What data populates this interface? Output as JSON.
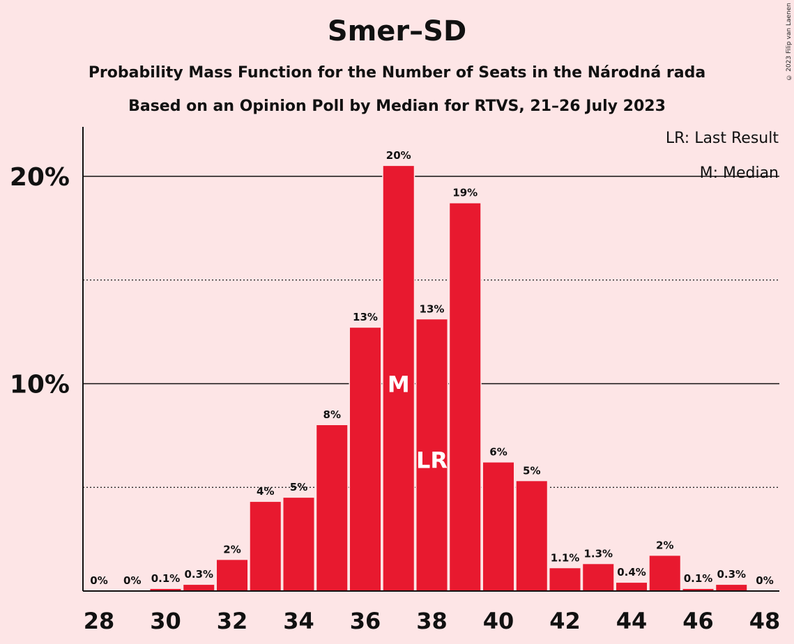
{
  "title": "Smer–SD",
  "subtitle_1": "Probability Mass Function for the Number of Seats in the Národná rada",
  "subtitle_2": "Based on an Opinion Poll by Median for RTVS, 21–26 July 2023",
  "copyright": "© 2023 Filip van Laenen",
  "legend": {
    "last_result": "LR: Last Result",
    "median": "M: Median"
  },
  "colors": {
    "background": "#FDE5E6",
    "bar": "#E8192F",
    "text": "#111111"
  },
  "chart_data": {
    "type": "bar",
    "title": "Smer–SD",
    "xlabel": "",
    "ylabel": "",
    "ylim": [
      0,
      22
    ],
    "x_ticks": [
      28,
      30,
      32,
      34,
      36,
      38,
      40,
      42,
      44,
      46,
      48
    ],
    "y_ticks": [
      {
        "value": 10,
        "label": "10%"
      },
      {
        "value": 20,
        "label": "20%"
      }
    ],
    "dotted_gridlines": [
      5,
      15
    ],
    "categories": [
      28,
      29,
      30,
      31,
      32,
      33,
      34,
      35,
      36,
      37,
      38,
      39,
      40,
      41,
      42,
      43,
      44,
      45,
      46,
      47,
      48
    ],
    "values": [
      0,
      0,
      0.1,
      0.3,
      1.5,
      4.3,
      4.5,
      8.0,
      12.7,
      20.5,
      13.1,
      18.7,
      6.2,
      5.3,
      1.1,
      1.3,
      0.4,
      1.7,
      0.1,
      0.3,
      0
    ],
    "labels": [
      "0%",
      "0%",
      "0.1%",
      "0.3%",
      "2%",
      "4%",
      "5%",
      "8%",
      "13%",
      "20%",
      "13%",
      "19%",
      "6%",
      "5%",
      "1.1%",
      "1.3%",
      "0.4%",
      "2%",
      "0.1%",
      "0.3%",
      "0%"
    ],
    "median": {
      "seat": 37,
      "marker": "M"
    },
    "last_result": {
      "seat": 38,
      "marker": "LR"
    }
  }
}
